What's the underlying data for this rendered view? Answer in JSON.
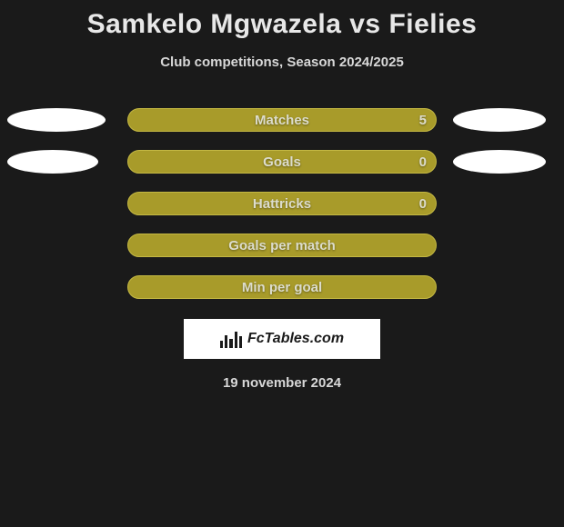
{
  "title": "Samkelo Mgwazela vs Fielies",
  "subtitle": "Club competitions, Season 2024/2025",
  "date": "19 november 2024",
  "logo_text": "FcTables.com",
  "colors": {
    "background": "#1a1a1a",
    "bar_fill": "#a89b2a",
    "bar_border": "#c4b843",
    "ellipse_fill": "#ffffff",
    "text_light": "#e8e8e8",
    "text_dim": "#d8d8d8",
    "bar_text": "#dcdccc"
  },
  "rows": [
    {
      "label": "Matches",
      "value": "5",
      "show_value": true,
      "left_ellipse_width": 108,
      "right_ellipse_width": 102
    },
    {
      "label": "Goals",
      "value": "0",
      "show_value": true,
      "left_ellipse_width": 100,
      "right_ellipse_width": 102
    },
    {
      "label": "Hattricks",
      "value": "0",
      "show_value": true,
      "left_ellipse_width": 0,
      "right_ellipse_width": 0
    },
    {
      "label": "Goals per match",
      "value": "",
      "show_value": false,
      "left_ellipse_width": 0,
      "right_ellipse_width": 0
    },
    {
      "label": "Min per goal",
      "value": "",
      "show_value": false,
      "left_ellipse_width": 0,
      "right_ellipse_width": 0
    }
  ]
}
